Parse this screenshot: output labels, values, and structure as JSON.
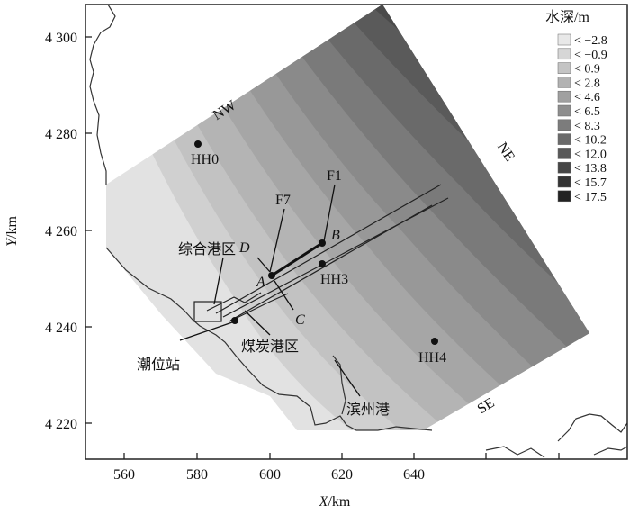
{
  "axes": {
    "x": {
      "label_var": "X",
      "label_unit": "/km",
      "ticks": [
        "560",
        "580",
        "600",
        "620",
        "640"
      ]
    },
    "y": {
      "label_var": "Y",
      "label_unit": "/km",
      "ticks": [
        "4 220",
        "4 240",
        "4 260",
        "4 280",
        "4 300"
      ]
    }
  },
  "legend": {
    "title": "水深/m",
    "items": [
      {
        "label": "< −2.8",
        "color": "#e8e8e8"
      },
      {
        "label": "< −0.9",
        "color": "#d6d6d6"
      },
      {
        "label": "< 0.9",
        "color": "#c4c4c4"
      },
      {
        "label": "< 2.8",
        "color": "#b2b2b2"
      },
      {
        "label": "< 4.6",
        "color": "#a0a0a0"
      },
      {
        "label": "< 6.5",
        "color": "#8e8e8e"
      },
      {
        "label": "< 8.3",
        "color": "#7c7c7c"
      },
      {
        "label": "< 10.2",
        "color": "#6a6a6a"
      },
      {
        "label": "< 12.0",
        "color": "#585858"
      },
      {
        "label": "< 13.8",
        "color": "#464646"
      },
      {
        "label": "< 15.7",
        "color": "#343434"
      },
      {
        "label": "< 17.5",
        "color": "#222222"
      }
    ]
  },
  "boundaries": {
    "nw": "NW",
    "ne": "NE",
    "se": "SE"
  },
  "stations": {
    "hh0": "HH0",
    "hh3": "HH3",
    "hh4": "HH4",
    "f1": "F1",
    "f7": "F7",
    "a": "A",
    "b": "B",
    "c": "C",
    "d": "D"
  },
  "places": {
    "zonghe": "综合港区",
    "meitan": "煤炭港区",
    "chaowei": "潮位站",
    "binzhou": "滨州港"
  }
}
